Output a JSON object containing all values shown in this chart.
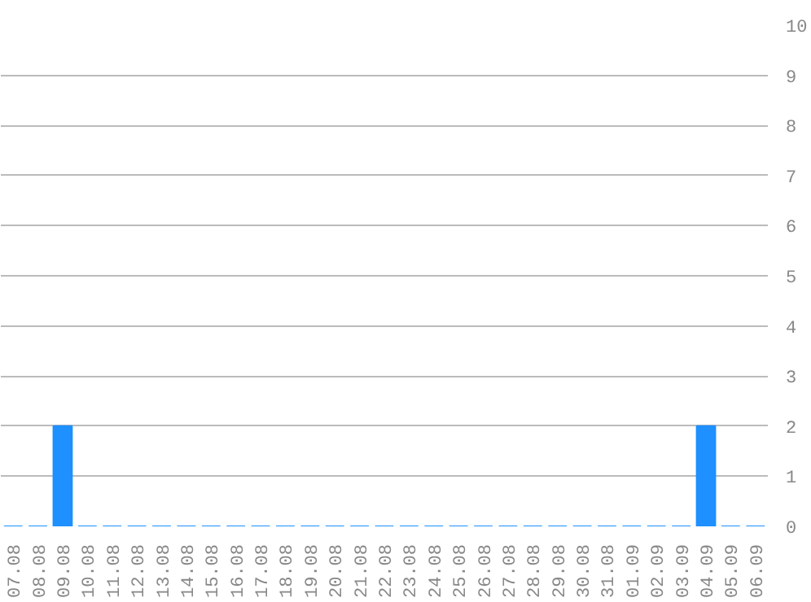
{
  "chart_data": {
    "type": "bar",
    "categories": [
      "07.08",
      "08.08",
      "09.08",
      "10.08",
      "11.08",
      "12.08",
      "13.08",
      "14.08",
      "15.08",
      "16.08",
      "17.08",
      "18.08",
      "19.08",
      "20.08",
      "21.08",
      "22.08",
      "23.08",
      "24.08",
      "25.08",
      "26.08",
      "27.08",
      "28.08",
      "29.08",
      "30.08",
      "31.08",
      "01.09",
      "02.09",
      "03.09",
      "04.09",
      "05.09",
      "06.09"
    ],
    "values": [
      0,
      0,
      2,
      0,
      0,
      0,
      0,
      0,
      0,
      0,
      0,
      0,
      0,
      0,
      0,
      0,
      0,
      0,
      0,
      0,
      0,
      0,
      0,
      0,
      0,
      0,
      0,
      0,
      2,
      0,
      0
    ],
    "color": "#1e90ff",
    "ylim": [
      0,
      10
    ],
    "yticks": [
      0,
      1,
      2,
      3,
      4,
      5,
      6,
      7,
      8,
      9,
      10
    ],
    "grid": "y"
  }
}
